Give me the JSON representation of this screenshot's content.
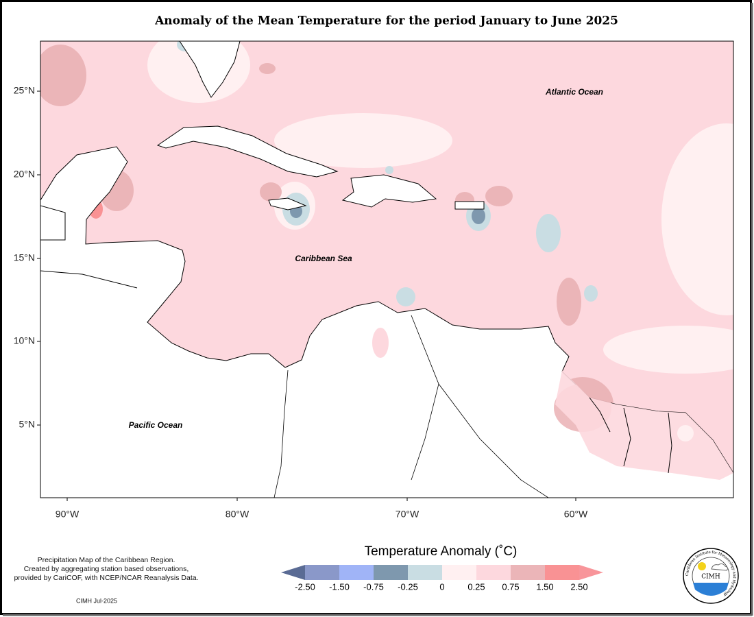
{
  "title": "Anomaly of the Mean Temperature for the period January to June 2025",
  "map": {
    "lat_labels": [
      "25°N",
      "20°N",
      "15°N",
      "10°N",
      "5°N"
    ],
    "lon_labels": [
      "90°W",
      "80°W",
      "70°W",
      "60°W"
    ],
    "places": [
      "Atlantic Ocean",
      "Caribbean Sea",
      "Pacific Ocean"
    ]
  },
  "legend": {
    "title": "Temperature Anomaly (˚C)",
    "labels": [
      "-2.50",
      "-1.50",
      "-0.75",
      "-0.25",
      "0",
      "0.25",
      "0.75",
      "1.50",
      "2.50"
    ],
    "colors": [
      "#5a6b94",
      "#8a98c9",
      "#a0b4f7",
      "#7e98ae",
      "#c9dde3",
      "#fff0f1",
      "#fdd8de",
      "#ebb5b8",
      "#f99294",
      "#f8959a"
    ]
  },
  "footer": {
    "notes": [
      "Precipitation Map of the Caribbean Region.",
      "Created by aggregating station based observations,",
      "provided by CariCOF, with NCEP/NCAR Reanalysis Data."
    ],
    "date": "CIMH Jul-2025"
  },
  "logo": {
    "text": "CIMH",
    "ring": "Caribbean Institute for Meteorology and Hydrology"
  }
}
